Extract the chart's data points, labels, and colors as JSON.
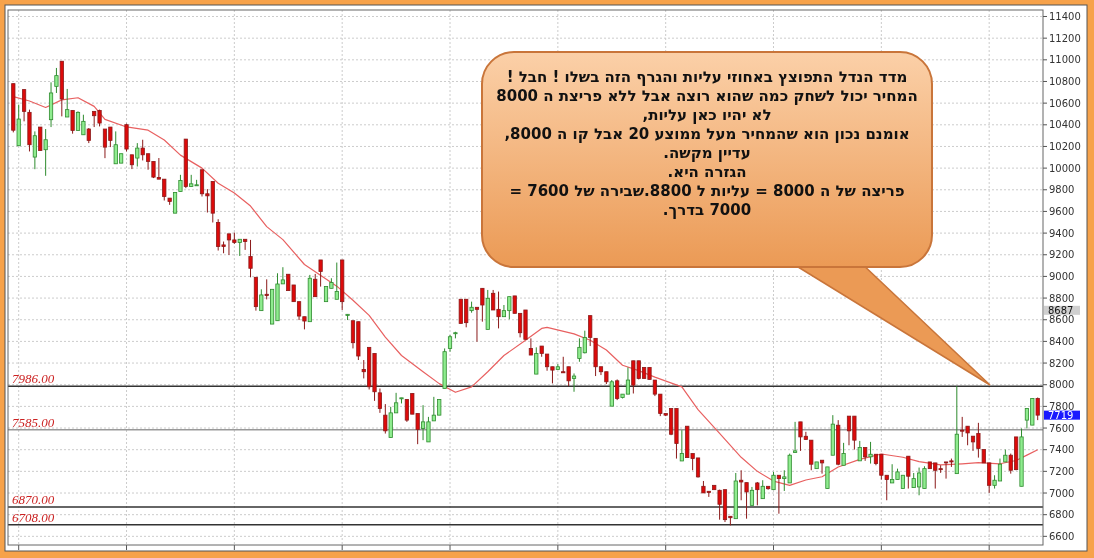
{
  "chart_data": {
    "type": "candlestick",
    "categories": [
      null,
      null,
      null,
      null,
      null,
      null,
      null,
      null,
      null,
      null,
      null,
      null,
      null,
      null,
      null,
      null,
      null,
      null,
      null,
      null,
      null,
      null,
      null,
      null,
      null,
      null,
      null,
      null,
      null,
      null,
      null,
      null,
      null,
      null,
      null,
      null,
      null,
      null,
      null,
      null,
      null,
      null,
      null,
      null,
      null,
      null,
      null,
      null,
      null,
      null,
      null,
      null,
      null,
      null,
      null,
      null,
      null,
      null,
      null,
      null,
      null,
      null,
      null,
      null,
      null,
      null,
      null,
      null,
      null,
      null,
      null,
      null,
      null,
      null,
      null,
      null,
      null,
      null,
      null,
      null,
      null,
      null,
      null,
      null,
      null,
      null,
      null,
      null,
      null,
      null,
      null,
      null,
      null,
      null,
      null,
      null,
      null,
      null,
      null,
      null,
      null,
      null,
      null,
      null,
      null,
      null,
      null,
      null,
      null,
      null,
      null,
      null,
      null,
      null,
      null,
      null,
      null,
      null,
      null,
      null,
      null,
      null,
      null,
      null,
      null,
      null,
      null,
      null,
      null,
      null,
      null,
      null,
      null,
      null,
      null,
      null,
      null,
      null,
      null,
      null,
      null,
      null,
      null,
      null,
      null,
      null,
      null,
      null,
      null,
      null,
      null,
      null,
      null,
      null,
      null,
      null,
      null,
      null,
      null,
      null,
      null,
      null,
      null,
      null,
      null,
      null,
      null,
      null,
      null,
      null,
      null,
      null,
      null,
      null,
      null,
      null,
      null,
      null,
      null,
      null,
      null,
      null,
      null,
      null,
      null,
      null,
      null,
      null,
      null,
      null,
      null
    ],
    "ohlc": [
      [
        10780,
        10780,
        10330,
        10350
      ],
      [
        10207,
        10586,
        10207,
        10453
      ],
      [
        10725,
        10725,
        10432,
        10524
      ],
      [
        10515,
        10540,
        10154,
        10216
      ],
      [
        10102,
        10339,
        9990,
        10299
      ],
      [
        10379,
        10379,
        10163,
        10163
      ],
      [
        10170,
        10361,
        9929,
        10262
      ],
      [
        10447,
        10792,
        10379,
        10694
      ],
      [
        10755,
        10925,
        10694,
        10854
      ],
      [
        10987,
        10987,
        10478,
        10638
      ],
      [
        10472,
        10731,
        10472,
        10540
      ],
      [
        10533,
        10533,
        10318,
        10348
      ],
      [
        10348,
        10524,
        10348,
        10515
      ],
      [
        10308,
        10493,
        10308,
        10432
      ],
      [
        10361,
        10370,
        10231,
        10256
      ],
      [
        10524,
        10524,
        10379,
        10484
      ],
      [
        10533,
        10540,
        10385,
        10416
      ],
      [
        10361,
        10361,
        10092,
        10194
      ],
      [
        10379,
        10379,
        10194,
        10256
      ],
      [
        10040,
        10339,
        10040,
        10216
      ],
      [
        10046,
        10133,
        10046,
        10133
      ],
      [
        10401,
        10410,
        10154,
        10176
      ],
      [
        10123,
        10123,
        9991,
        10031
      ],
      [
        10093,
        10231,
        10015,
        10185
      ],
      [
        10185,
        10262,
        10071,
        10123
      ],
      [
        10133,
        10133,
        9985,
        10062
      ],
      [
        10062,
        10062,
        9908,
        9917
      ],
      [
        9914,
        10093,
        9898,
        9898
      ],
      [
        9898,
        9898,
        9701,
        9738
      ],
      [
        9723,
        9723,
        9661,
        9692
      ],
      [
        9584,
        9775,
        9584,
        9775
      ],
      [
        9784,
        9938,
        9784,
        9886
      ],
      [
        10268,
        10268,
        9815,
        9830
      ],
      [
        9830,
        9938,
        9830,
        9855
      ],
      [
        9837,
        9892,
        9837,
        9846
      ],
      [
        9985,
        9985,
        9738,
        9763
      ],
      [
        9763,
        9806,
        9590,
        9744
      ],
      [
        9877,
        9877,
        9498,
        9584
      ],
      [
        9498,
        9528,
        9239,
        9276
      ],
      [
        9291,
        9322,
        9214,
        9276
      ],
      [
        9393,
        9393,
        9198,
        9337
      ],
      [
        9337,
        9405,
        9300,
        9313
      ],
      [
        9313,
        9343,
        9189,
        9343
      ],
      [
        9343,
        9343,
        9245,
        9322
      ],
      [
        9183,
        9337,
        8992,
        9075
      ],
      [
        8992,
        8992,
        8684,
        8721
      ],
      [
        8684,
        8881,
        8684,
        8829
      ],
      [
        8835,
        8973,
        8788,
        8823
      ],
      [
        8560,
        8881,
        8560,
        8881
      ],
      [
        8591,
        9029,
        8591,
        8930
      ],
      [
        8931,
        9085,
        8931,
        8968
      ],
      [
        9020,
        9020,
        8869,
        8869
      ],
      [
        8921,
        8921,
        8767,
        8767
      ],
      [
        8767,
        8767,
        8597,
        8634
      ],
      [
        8628,
        8628,
        8511,
        8588
      ],
      [
        8582,
        9014,
        8582,
        8983
      ],
      [
        8974,
        9023,
        8813,
        8813
      ],
      [
        9152,
        9152,
        8906,
        9045
      ],
      [
        8767,
        8906,
        8767,
        8906
      ],
      [
        8890,
        8983,
        8890,
        8943
      ],
      [
        8789,
        9128,
        8789,
        8860
      ],
      [
        9152,
        9152,
        8690,
        8767
      ],
      [
        8640,
        8653,
        8597,
        8650
      ],
      [
        8591,
        8591,
        8335,
        8388
      ],
      [
        8582,
        8582,
        8228,
        8265
      ],
      [
        8141,
        8228,
        8058,
        8120
      ],
      [
        8345,
        8345,
        7956,
        7981
      ],
      [
        8289,
        8289,
        7851,
        7935
      ],
      [
        7925,
        7965,
        7740,
        7780
      ],
      [
        7719,
        7821,
        7549,
        7574
      ],
      [
        7512,
        7796,
        7512,
        7740
      ],
      [
        7740,
        7925,
        7740,
        7833
      ],
      [
        7870,
        7879,
        7827,
        7879
      ],
      [
        7864,
        7864,
        7657,
        7673
      ],
      [
        7919,
        7919,
        7728,
        7728
      ],
      [
        7734,
        7734,
        7451,
        7586
      ],
      [
        7595,
        7811,
        7488,
        7657
      ],
      [
        7472,
        7703,
        7472,
        7657
      ],
      [
        7666,
        7888,
        7666,
        7719
      ],
      [
        7719,
        7864,
        7719,
        7864
      ],
      [
        7965,
        8335,
        7965,
        8305
      ],
      [
        8335,
        8459,
        8305,
        8443
      ],
      [
        8474,
        8489,
        8428,
        8480
      ],
      [
        8789,
        8789,
        8566,
        8566
      ],
      [
        8789,
        8789,
        8530,
        8573
      ],
      [
        8684,
        8767,
        8665,
        8715
      ],
      [
        8715,
        8715,
        8397,
        8696
      ],
      [
        8890,
        8890,
        8582,
        8736
      ],
      [
        8511,
        8875,
        8511,
        8798
      ],
      [
        8844,
        8875,
        8690,
        8690
      ],
      [
        8696,
        8860,
        8520,
        8628
      ],
      [
        8628,
        8736,
        8628,
        8684
      ],
      [
        8684,
        8813,
        8604,
        8813
      ],
      [
        8820,
        8820,
        8659,
        8659
      ],
      [
        8659,
        8659,
        8437,
        8480
      ],
      [
        8690,
        8690,
        8419,
        8419
      ],
      [
        8335,
        8428,
        8274,
        8274
      ],
      [
        8098,
        8345,
        8098,
        8289
      ],
      [
        8357,
        8357,
        8258,
        8289
      ],
      [
        8283,
        8283,
        8129,
        8166
      ],
      [
        8166,
        8166,
        8012,
        8135
      ],
      [
        8141,
        8191,
        8141,
        8166
      ],
      [
        8120,
        8258,
        8110,
        8110
      ],
      [
        8166,
        8166,
        7987,
        8036
      ],
      [
        8058,
        8104,
        7935,
        8080
      ],
      [
        8243,
        8428,
        8212,
        8345
      ],
      [
        8295,
        8499,
        8289,
        8437
      ],
      [
        8638,
        8638,
        8357,
        8437
      ],
      [
        8428,
        8428,
        8080,
        8166
      ],
      [
        8166,
        8166,
        8089,
        8120
      ],
      [
        8120,
        8120,
        8006,
        8027
      ],
      [
        7802,
        8043,
        7802,
        8027
      ],
      [
        8036,
        8049,
        7858,
        7873
      ],
      [
        7882,
        7913,
        7873,
        7913
      ],
      [
        7913,
        8160,
        7913,
        8043
      ],
      [
        8221,
        8221,
        7919,
        7996
      ],
      [
        8221,
        8221,
        8049,
        8058
      ],
      [
        8160,
        8160,
        8058,
        8058
      ],
      [
        8160,
        8160,
        8049,
        8049
      ],
      [
        8043,
        8043,
        7895,
        7913
      ],
      [
        7913,
        7913,
        7710,
        7734
      ],
      [
        7734,
        7734,
        7710,
        7719
      ],
      [
        7780,
        7780,
        7534,
        7543
      ],
      [
        7780,
        7780,
        7318,
        7457
      ],
      [
        7296,
        7580,
        7296,
        7364
      ],
      [
        7617,
        7617,
        7327,
        7327
      ],
      [
        7364,
        7364,
        7210,
        7318
      ],
      [
        7324,
        7324,
        7142,
        7149
      ],
      [
        7062,
        7111,
        7001,
        7001
      ],
      [
        7016,
        7016,
        6964,
        7004
      ],
      [
        7071,
        7071,
        7031,
        7031
      ],
      [
        7025,
        7031,
        6754,
        6896
      ],
      [
        7031,
        7031,
        6732,
        6754
      ],
      [
        6785,
        6785,
        6701,
        6772
      ],
      [
        6763,
        7185,
        6763,
        7111
      ],
      [
        7118,
        7210,
        6933,
        7102
      ],
      [
        7096,
        7096,
        6763,
        7010
      ],
      [
        6886,
        7056,
        6886,
        7025
      ],
      [
        7093,
        7102,
        6886,
        7031
      ],
      [
        6948,
        7118,
        6948,
        7062
      ],
      [
        7062,
        7062,
        7031,
        7040
      ],
      [
        7031,
        7195,
        7031,
        7164
      ],
      [
        7164,
        7164,
        6809,
        7133
      ],
      [
        7133,
        7210,
        7019,
        7149
      ],
      [
        7093,
        7364,
        7093,
        7349
      ],
      [
        7374,
        7657,
        7374,
        7389
      ],
      [
        7657,
        7657,
        7389,
        7518
      ],
      [
        7524,
        7565,
        7494,
        7494
      ],
      [
        7488,
        7488,
        7210,
        7266
      ],
      [
        7225,
        7287,
        7225,
        7287
      ],
      [
        7303,
        7303,
        7179,
        7278
      ],
      [
        7041,
        7241,
        7041,
        7241
      ],
      [
        7349,
        7719,
        7349,
        7636
      ],
      [
        7626,
        7673,
        7256,
        7266
      ],
      [
        7256,
        7463,
        7256,
        7364
      ],
      [
        7710,
        7710,
        7441,
        7574
      ],
      [
        7710,
        7710,
        7401,
        7488
      ],
      [
        7297,
        7481,
        7297,
        7420
      ],
      [
        7420,
        7420,
        7297,
        7334
      ],
      [
        7334,
        7472,
        7272,
        7358
      ],
      [
        7358,
        7358,
        7256,
        7272
      ],
      [
        7358,
        7358,
        7124,
        7164
      ],
      [
        7164,
        7164,
        6933,
        7124
      ],
      [
        7093,
        7266,
        7093,
        7124
      ],
      [
        7124,
        7225,
        7124,
        7195
      ],
      [
        7041,
        7164,
        7041,
        7164
      ],
      [
        7340,
        7340,
        7041,
        7155
      ],
      [
        7050,
        7185,
        7050,
        7133
      ],
      [
        7056,
        7235,
        6979,
        7185
      ],
      [
        7041,
        7247,
        7041,
        7225
      ],
      [
        7287,
        7287,
        7225,
        7225
      ],
      [
        7278,
        7278,
        7041,
        7210
      ],
      [
        7225,
        7256,
        7186,
        7216
      ],
      [
        7287,
        7287,
        7133,
        7278
      ],
      [
        7297,
        7318,
        7241,
        7287
      ],
      [
        7179,
        7987,
        7179,
        7543
      ],
      [
        7580,
        7703,
        7518,
        7574
      ],
      [
        7617,
        7617,
        7441,
        7555
      ],
      [
        7525,
        7525,
        7389,
        7472
      ],
      [
        7549,
        7648,
        7327,
        7411
      ],
      [
        7401,
        7401,
        7278,
        7278
      ],
      [
        7278,
        7278,
        7001,
        7071
      ],
      [
        7071,
        7164,
        7041,
        7118
      ],
      [
        7111,
        7318,
        7111,
        7266
      ],
      [
        7287,
        7401,
        7287,
        7349
      ],
      [
        7349,
        7364,
        7179,
        7210
      ],
      [
        7518,
        7518,
        7210,
        7216
      ],
      [
        7062,
        7596,
        7062,
        7518
      ],
      [
        7673,
        7780,
        7596,
        7780
      ],
      [
        7627,
        7873,
        7627,
        7873
      ],
      [
        7873,
        7882,
        7673,
        7719
      ]
    ],
    "series": [
      {
        "type": "line",
        "color": "#e86060",
        "values": [
          10660,
          null,
          null,
          10620,
          null,
          null,
          10560,
          null,
          null,
          10630,
          null,
          null,
          10650,
          null,
          null,
          10570,
          null,
          10450,
          null,
          null,
          null,
          10380,
          null,
          null,
          null,
          10350,
          null,
          null,
          10260,
          null,
          null,
          10120,
          null,
          null,
          null,
          10000,
          null,
          null,
          9860,
          null,
          null,
          9770,
          null,
          null,
          9650,
          null,
          null,
          9460,
          null,
          null,
          9340,
          null,
          null,
          null,
          9110,
          null,
          null,
          null,
          null,
          null,
          8910,
          null,
          null,
          8780,
          null,
          null,
          8640,
          null,
          null,
          8440,
          null,
          null,
          8270,
          null,
          null,
          null,
          8120,
          null,
          null,
          8010,
          null,
          null,
          7930,
          null,
          null,
          7980,
          null,
          null,
          8120,
          null,
          null,
          8270,
          null,
          null,
          null,
          8410,
          null,
          null,
          8520,
          8530,
          null,
          null,
          null,
          null,
          8470,
          null,
          null,
          8410,
          null,
          null,
          8320,
          null,
          null,
          8180,
          null,
          null,
          8130,
          null,
          null,
          8070,
          null,
          null,
          null,
          null,
          7980,
          null,
          null,
          7770,
          null,
          null,
          null,
          7550,
          null,
          null,
          null,
          7330,
          null,
          null,
          7200,
          null,
          null,
          7110,
          null,
          null,
          7070,
          null,
          null,
          7120,
          null,
          null,
          7150,
          7180,
          null,
          7240,
          null,
          null,
          null,
          7310,
          null,
          null,
          null,
          7360,
          null,
          null,
          null,
          7330,
          null,
          null,
          7290,
          null,
          null,
          null,
          7260,
          null,
          null,
          null,
          7270,
          null,
          null,
          7280,
          null,
          null,
          null,
          7270,
          null,
          null,
          7300,
          null,
          7350,
          null,
          7400
        ]
      }
    ],
    "ylim": [
      6520,
      11460
    ],
    "yticks": [
      6600,
      6800,
      7000,
      7200,
      7400,
      7600,
      7800,
      8000,
      8200,
      8400,
      8600,
      8800,
      9000,
      9200,
      9400,
      9600,
      9800,
      10000,
      10200,
      10400,
      10600,
      10800,
      11000,
      11200,
      11400
    ],
    "ref_lines": [
      {
        "axis": "y",
        "value": 7986,
        "label": "7986.00",
        "color": "#333333"
      },
      {
        "axis": "y",
        "value": 7585,
        "label": "7585.00",
        "color": "#999999"
      },
      {
        "axis": "y",
        "value": 6870,
        "label": "6870.00",
        "color": "#333333"
      },
      {
        "axis": "y",
        "value": 6708,
        "label": "6708.00",
        "color": "#333333"
      }
    ],
    "annotations": [
      "מדד הנדל התפוצץ באחוזי עליות והגרף הזה בשלו ! חבל !",
      "המחיר יכול לשחק כמה שהוא רוצה אבל ללא פריצת ה 8000 לא יהיו כאן עליות,",
      "אומנם נכון הוא שהמחיר מעל ממוצע 20 אבל קו ה 8000, עדיין מקשה.",
      "הגזרה היא.",
      "פריצה של ה 8000 = עליות ל 8800.שבירה של 7600 = 7000 בדרך.",
      "8687",
      "7719"
    ],
    "grid": true,
    "tick_labels": "y"
  }
}
